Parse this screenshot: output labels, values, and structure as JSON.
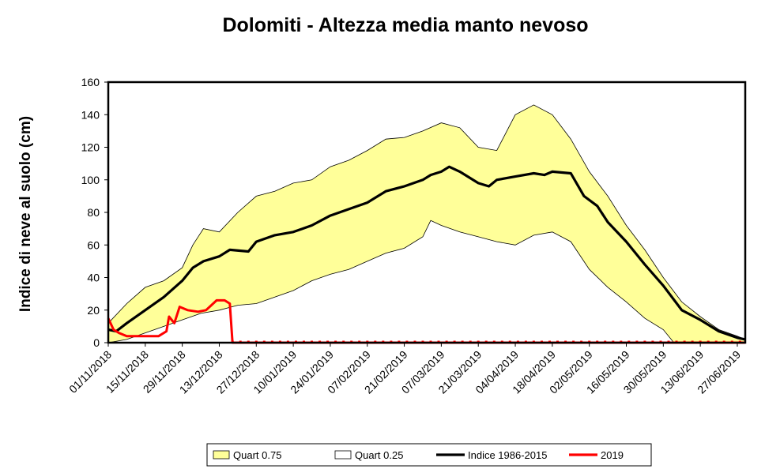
{
  "chart_data": {
    "type": "area",
    "title": "Dolomiti - Altezza media manto nevoso",
    "ylabel": "Indice di neve al suolo (cm)",
    "xlabel": "",
    "ylim": [
      0,
      160
    ],
    "yticks": [
      0,
      20,
      40,
      60,
      80,
      100,
      120,
      140,
      160
    ],
    "x_range": [
      "01/11/2018",
      "30/06/2019"
    ],
    "x_tick_labels": [
      "01/11/2018",
      "15/11/2018",
      "29/11/2018",
      "13/12/2018",
      "27/12/2018",
      "10/01/2019",
      "24/01/2019",
      "07/02/2019",
      "21/02/2019",
      "07/03/2019",
      "21/03/2019",
      "04/04/2019",
      "18/04/2019",
      "02/05/2019",
      "16/05/2019",
      "30/05/2019",
      "13/06/2019",
      "27/06/2019"
    ],
    "legend_position": "bottom",
    "grid": false,
    "series": [
      {
        "name": "Quart 0.75",
        "color": "#ffff99",
        "points": [
          [
            "01/11/2018",
            12
          ],
          [
            "08/11/2018",
            24
          ],
          [
            "15/11/2018",
            34
          ],
          [
            "22/11/2018",
            38
          ],
          [
            "29/11/2018",
            46
          ],
          [
            "03/12/2018",
            60
          ],
          [
            "07/12/2018",
            70
          ],
          [
            "13/12/2018",
            68
          ],
          [
            "20/12/2018",
            80
          ],
          [
            "27/12/2018",
            90
          ],
          [
            "03/01/2019",
            93
          ],
          [
            "10/01/2019",
            98
          ],
          [
            "17/01/2019",
            100
          ],
          [
            "24/01/2019",
            108
          ],
          [
            "31/01/2019",
            112
          ],
          [
            "07/02/2019",
            118
          ],
          [
            "14/02/2019",
            125
          ],
          [
            "21/02/2019",
            126
          ],
          [
            "28/02/2019",
            130
          ],
          [
            "07/03/2019",
            135
          ],
          [
            "14/03/2019",
            132
          ],
          [
            "21/03/2019",
            120
          ],
          [
            "28/03/2019",
            118
          ],
          [
            "04/04/2019",
            140
          ],
          [
            "11/04/2019",
            146
          ],
          [
            "18/04/2019",
            140
          ],
          [
            "25/04/2019",
            125
          ],
          [
            "02/05/2019",
            105
          ],
          [
            "09/05/2019",
            90
          ],
          [
            "16/05/2019",
            72
          ],
          [
            "23/05/2019",
            57
          ],
          [
            "30/05/2019",
            40
          ],
          [
            "06/06/2019",
            25
          ],
          [
            "13/06/2019",
            16
          ],
          [
            "20/06/2019",
            8
          ],
          [
            "27/06/2019",
            4
          ],
          [
            "30/06/2019",
            2
          ]
        ]
      },
      {
        "name": "Quart 0.25",
        "color": "#ffffff",
        "points": [
          [
            "01/11/2018",
            0
          ],
          [
            "08/11/2018",
            2
          ],
          [
            "15/11/2018",
            6
          ],
          [
            "22/11/2018",
            10
          ],
          [
            "29/11/2018",
            14
          ],
          [
            "06/12/2018",
            18
          ],
          [
            "13/12/2018",
            20
          ],
          [
            "20/12/2018",
            23
          ],
          [
            "27/12/2018",
            24
          ],
          [
            "03/01/2019",
            28
          ],
          [
            "10/01/2019",
            32
          ],
          [
            "17/01/2019",
            38
          ],
          [
            "24/01/2019",
            42
          ],
          [
            "31/01/2019",
            45
          ],
          [
            "07/02/2019",
            50
          ],
          [
            "14/02/2019",
            55
          ],
          [
            "21/02/2019",
            58
          ],
          [
            "28/02/2019",
            65
          ],
          [
            "03/03/2019",
            75
          ],
          [
            "07/03/2019",
            72
          ],
          [
            "14/03/2019",
            68
          ],
          [
            "21/03/2019",
            65
          ],
          [
            "28/03/2019",
            62
          ],
          [
            "04/04/2019",
            60
          ],
          [
            "11/04/2019",
            66
          ],
          [
            "18/04/2019",
            68
          ],
          [
            "25/04/2019",
            62
          ],
          [
            "02/05/2019",
            45
          ],
          [
            "09/05/2019",
            34
          ],
          [
            "16/05/2019",
            25
          ],
          [
            "23/05/2019",
            15
          ],
          [
            "30/05/2019",
            8
          ],
          [
            "03/06/2019",
            0
          ],
          [
            "30/06/2019",
            0
          ]
        ]
      },
      {
        "name": "Indice 1986-2015",
        "color": "#000000",
        "points": [
          [
            "01/11/2018",
            8
          ],
          [
            "04/11/2018",
            7
          ],
          [
            "08/11/2018",
            12
          ],
          [
            "15/11/2018",
            20
          ],
          [
            "22/11/2018",
            28
          ],
          [
            "29/11/2018",
            38
          ],
          [
            "03/12/2018",
            46
          ],
          [
            "07/12/2018",
            50
          ],
          [
            "13/12/2018",
            53
          ],
          [
            "17/12/2018",
            57
          ],
          [
            "24/12/2018",
            56
          ],
          [
            "27/12/2018",
            62
          ],
          [
            "03/01/2019",
            66
          ],
          [
            "10/01/2019",
            68
          ],
          [
            "17/01/2019",
            72
          ],
          [
            "24/01/2019",
            78
          ],
          [
            "31/01/2019",
            82
          ],
          [
            "07/02/2019",
            86
          ],
          [
            "14/02/2019",
            93
          ],
          [
            "21/02/2019",
            96
          ],
          [
            "28/02/2019",
            100
          ],
          [
            "03/03/2019",
            103
          ],
          [
            "07/03/2019",
            105
          ],
          [
            "10/03/2019",
            108
          ],
          [
            "14/03/2019",
            105
          ],
          [
            "21/03/2019",
            98
          ],
          [
            "25/03/2019",
            96
          ],
          [
            "28/03/2019",
            100
          ],
          [
            "04/04/2019",
            102
          ],
          [
            "11/04/2019",
            104
          ],
          [
            "15/04/2019",
            103
          ],
          [
            "18/04/2019",
            105
          ],
          [
            "25/04/2019",
            104
          ],
          [
            "30/04/2019",
            90
          ],
          [
            "05/05/2019",
            84
          ],
          [
            "09/05/2019",
            74
          ],
          [
            "16/05/2019",
            62
          ],
          [
            "23/05/2019",
            48
          ],
          [
            "30/05/2019",
            35
          ],
          [
            "06/06/2019",
            20
          ],
          [
            "13/06/2019",
            14
          ],
          [
            "20/06/2019",
            7
          ],
          [
            "27/06/2019",
            3
          ],
          [
            "30/06/2019",
            2
          ]
        ]
      },
      {
        "name": "2019",
        "color": "#ff0000",
        "points": [
          [
            "01/11/2018",
            15
          ],
          [
            "03/11/2018",
            8
          ],
          [
            "05/11/2018",
            6
          ],
          [
            "08/11/2018",
            4
          ],
          [
            "12/11/2018",
            4
          ],
          [
            "16/11/2018",
            4
          ],
          [
            "20/11/2018",
            4
          ],
          [
            "23/11/2018",
            7
          ],
          [
            "24/11/2018",
            16
          ],
          [
            "26/11/2018",
            12
          ],
          [
            "28/11/2018",
            22
          ],
          [
            "01/12/2018",
            20
          ],
          [
            "05/12/2018",
            19
          ],
          [
            "08/12/2018",
            20
          ],
          [
            "10/12/2018",
            23
          ],
          [
            "12/12/2018",
            26
          ],
          [
            "15/12/2018",
            26
          ],
          [
            "17/12/2018",
            24
          ],
          [
            "18/12/2018",
            0
          ],
          [
            "30/06/2019",
            0
          ]
        ]
      }
    ]
  }
}
